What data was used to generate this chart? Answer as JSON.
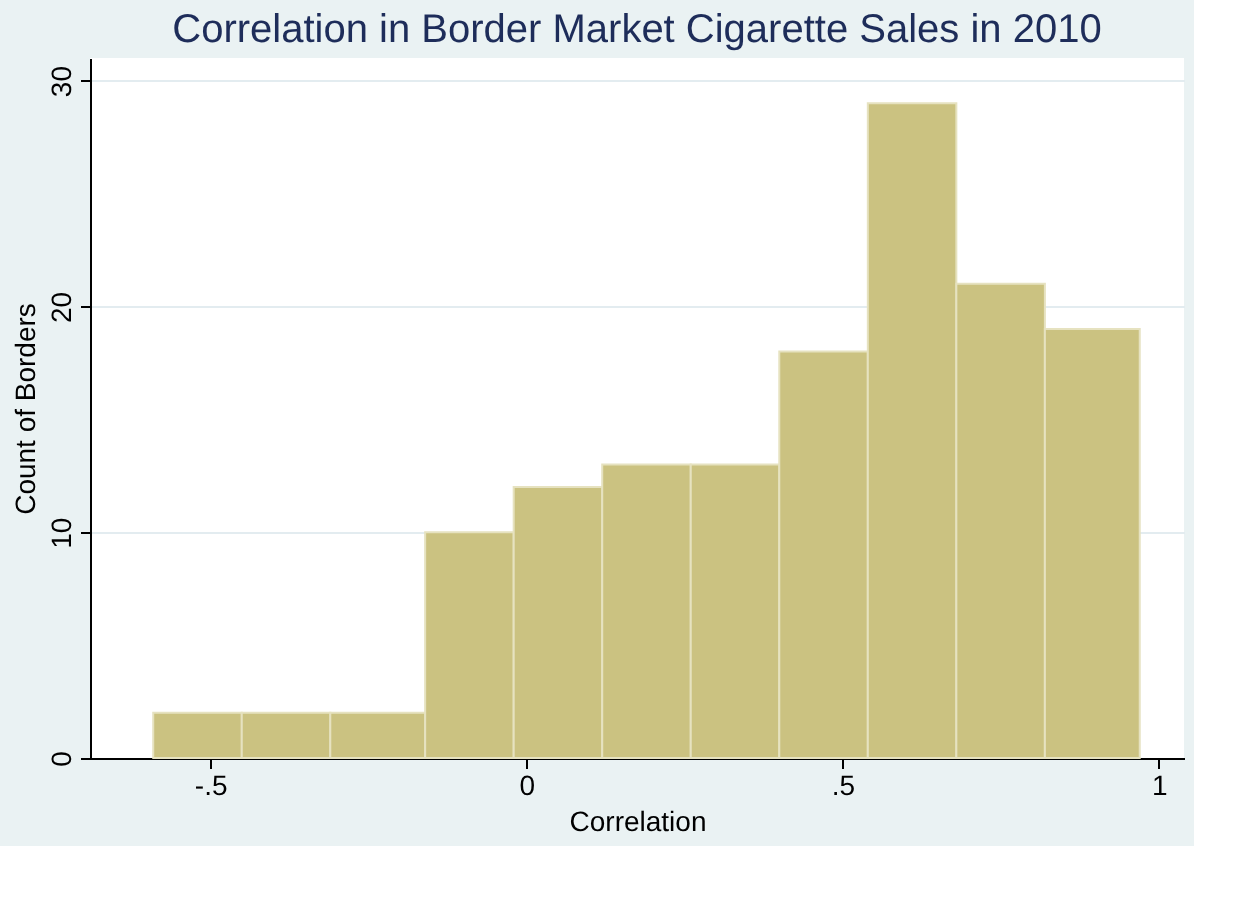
{
  "chart_data": {
    "type": "histogram",
    "title": "Correlation in Border Market Cigarette Sales in 2010",
    "xlabel": "Correlation",
    "ylabel": "Count of Borders",
    "bins": [
      -0.59,
      -0.45,
      -0.31,
      -0.16,
      -0.02,
      0.12,
      0.26,
      0.4,
      0.54,
      0.68,
      0.82,
      0.97
    ],
    "values": [
      2,
      2,
      2,
      10,
      12,
      13,
      13,
      18,
      29,
      21,
      19
    ],
    "color": "#cbc281",
    "xlim": [
      -0.69,
      1.04
    ],
    "xticks": [
      {
        "value": -0.5,
        "label": "-.5"
      },
      0,
      {
        "value": 0.5,
        "label": ".5"
      },
      1
    ],
    "ylim": [
      0,
      31
    ],
    "yticks": [
      0,
      10,
      20,
      30
    ],
    "grid": "y"
  }
}
